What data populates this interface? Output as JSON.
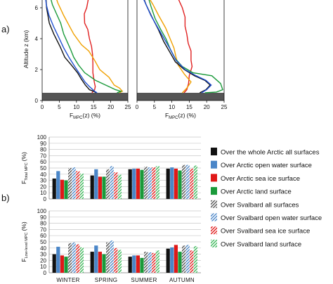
{
  "panel_labels": {
    "a": "a)",
    "b": "b)"
  },
  "chart_data": [
    {
      "type": "line",
      "panel": "a-left",
      "ylabel": "Altitude z (km)",
      "xlabel_main": "F",
      "xlabel_sub": "MPC",
      "xlabel_rest": "(z) (%)",
      "xlim": [
        0,
        25
      ],
      "ylim": [
        0,
        6.5
      ],
      "xticks": [
        "0",
        "5",
        "10",
        "15",
        "20",
        "25"
      ],
      "yticks": [
        "0",
        "2",
        "4",
        "6"
      ],
      "shaded_band_km": [
        0,
        0.5
      ],
      "series": [
        {
          "color": "#e02020",
          "points": [
            [
              13.8,
              7.0
            ],
            [
              13.5,
              6.6
            ],
            [
              13.0,
              6.0
            ],
            [
              12.3,
              5.6
            ],
            [
              12.4,
              5.0
            ],
            [
              13.3,
              4.6
            ],
            [
              13.8,
              4.0
            ],
            [
              14.4,
              3.5
            ],
            [
              14.7,
              3.0
            ],
            [
              14.8,
              2.4
            ],
            [
              14.8,
              1.8
            ],
            [
              15.2,
              1.2
            ],
            [
              15.5,
              0.9
            ],
            [
              15.3,
              0.7
            ],
            [
              14.5,
              0.5
            ]
          ]
        },
        {
          "color": "#f0a000",
          "points": [
            [
              3.5,
              7.0
            ],
            [
              4.6,
              6.3
            ],
            [
              6.3,
              5.5
            ],
            [
              9.2,
              4.3
            ],
            [
              11.5,
              3.6
            ],
            [
              13.6,
              3.2
            ],
            [
              15.3,
              2.6
            ],
            [
              16.8,
              2.0
            ],
            [
              19.5,
              1.5
            ],
            [
              21.0,
              1.0
            ],
            [
              22.6,
              0.8
            ],
            [
              23.4,
              0.6
            ],
            [
              22.5,
              0.5
            ]
          ]
        },
        {
          "color": "#1a9a3a",
          "points": [
            [
              2.0,
              7.0
            ],
            [
              3.0,
              6.2
            ],
            [
              4.0,
              5.7
            ],
            [
              5.4,
              5.0
            ],
            [
              6.3,
              4.3
            ],
            [
              7.3,
              3.8
            ],
            [
              8.3,
              3.3
            ],
            [
              9.2,
              2.8
            ],
            [
              10.6,
              2.3
            ],
            [
              12.4,
              1.8
            ],
            [
              15.6,
              1.3
            ],
            [
              19.5,
              0.9
            ],
            [
              21.4,
              0.7
            ],
            [
              23.0,
              0.6
            ],
            [
              21.8,
              0.5
            ]
          ]
        },
        {
          "color": "#111111",
          "points": [
            [
              1.0,
              7.0
            ],
            [
              1.3,
              6.0
            ],
            [
              2.1,
              5.0
            ],
            [
              3.4,
              4.3
            ],
            [
              5.2,
              3.5
            ],
            [
              6.6,
              2.8
            ],
            [
              8.5,
              2.3
            ],
            [
              10.3,
              1.8
            ],
            [
              11.4,
              1.4
            ],
            [
              12.6,
              1.0
            ],
            [
              13.8,
              0.7
            ],
            [
              15.0,
              0.6
            ],
            [
              15.8,
              0.5
            ]
          ]
        },
        {
          "color": "#2050d0",
          "points": [
            [
              0.8,
              7.0
            ],
            [
              1.2,
              6.2
            ],
            [
              2.0,
              5.5
            ],
            [
              3.3,
              4.8
            ],
            [
              4.6,
              4.2
            ],
            [
              6.3,
              3.4
            ],
            [
              7.8,
              2.8
            ],
            [
              9.5,
              2.2
            ],
            [
              11.0,
              1.7
            ],
            [
              12.5,
              1.2
            ],
            [
              13.8,
              0.9
            ],
            [
              15.3,
              0.6
            ],
            [
              16.0,
              0.5
            ]
          ]
        }
      ]
    },
    {
      "type": "line",
      "panel": "a-right",
      "xlabel_main": "F",
      "xlabel_sub": "MPC",
      "xlabel_rest": "(z) (%)",
      "xlim": [
        0,
        25
      ],
      "ylim": [
        0,
        6.5
      ],
      "xticks": [
        "0",
        "5",
        "10",
        "15",
        "20",
        "25"
      ],
      "shaded_band_km": [
        0,
        0.5
      ],
      "series": [
        {
          "color": "#e02020",
          "points": [
            [
              10.0,
              7.0
            ],
            [
              11.8,
              6.6
            ],
            [
              13.0,
              6.0
            ],
            [
              13.8,
              5.4
            ],
            [
              13.8,
              4.8
            ],
            [
              14.3,
              4.3
            ],
            [
              14.7,
              3.7
            ],
            [
              15.5,
              3.2
            ],
            [
              15.5,
              2.6
            ],
            [
              15.8,
              2.2
            ],
            [
              15.0,
              1.6
            ],
            [
              14.8,
              1.1
            ],
            [
              14.3,
              0.7
            ],
            [
              13.5,
              0.5
            ]
          ]
        },
        {
          "color": "#f0a000",
          "points": [
            [
              2.5,
              7.0
            ],
            [
              4.6,
              6.2
            ],
            [
              6.2,
              5.5
            ],
            [
              8.2,
              4.7
            ],
            [
              9.5,
              4.0
            ],
            [
              10.6,
              3.4
            ],
            [
              11.2,
              2.8
            ],
            [
              11.8,
              2.3
            ],
            [
              13.6,
              1.7
            ],
            [
              15.5,
              1.2
            ],
            [
              14.3,
              0.8
            ],
            [
              13.0,
              0.5
            ]
          ]
        },
        {
          "color": "#1a9a3a",
          "points": [
            [
              2.8,
              7.0
            ],
            [
              4.0,
              6.1
            ],
            [
              5.2,
              5.3
            ],
            [
              6.8,
              4.6
            ],
            [
              8.3,
              4.0
            ],
            [
              9.6,
              3.3
            ],
            [
              11.0,
              2.7
            ],
            [
              13.0,
              2.2
            ],
            [
              16.0,
              1.8
            ],
            [
              21.5,
              1.6
            ],
            [
              24.0,
              1.1
            ],
            [
              24.6,
              0.7
            ],
            [
              22.8,
              0.55
            ],
            [
              19.5,
              0.5
            ]
          ]
        },
        {
          "color": "#111111",
          "points": [
            [
              1.3,
              7.0
            ],
            [
              2.6,
              6.2
            ],
            [
              4.3,
              5.4
            ],
            [
              6.1,
              4.6
            ],
            [
              7.7,
              3.8
            ],
            [
              9.5,
              3.1
            ],
            [
              11.0,
              2.5
            ],
            [
              13.6,
              2.0
            ],
            [
              16.5,
              1.6
            ],
            [
              19.5,
              1.3
            ],
            [
              21.0,
              1.0
            ],
            [
              19.8,
              0.7
            ],
            [
              18.0,
              0.5
            ]
          ]
        },
        {
          "color": "#2050d0",
          "points": [
            [
              1.0,
              7.0
            ],
            [
              2.4,
              6.3
            ],
            [
              4.0,
              5.5
            ],
            [
              6.0,
              4.7
            ],
            [
              7.8,
              4.0
            ],
            [
              9.6,
              3.3
            ],
            [
              11.2,
              2.6
            ],
            [
              13.8,
              2.0
            ],
            [
              17.0,
              1.6
            ],
            [
              19.8,
              1.3
            ],
            [
              21.3,
              1.0
            ],
            [
              20.0,
              0.7
            ],
            [
              18.5,
              0.5
            ]
          ]
        }
      ]
    },
    {
      "type": "bar",
      "panel": "b-top",
      "ylabel_main": "F",
      "ylabel_sub": "Total MPC",
      "ylabel_rest": "(%)",
      "ylim": [
        0,
        100
      ],
      "yticks": [
        "0",
        "10",
        "20",
        "30",
        "40",
        "50",
        "60",
        "70",
        "80",
        "90",
        "100"
      ],
      "categories": [
        "WINTER",
        "SPRING",
        "SUMMER",
        "AUTUMN"
      ],
      "series": [
        {
          "style": "black",
          "values": [
            33,
            38,
            48,
            49
          ]
        },
        {
          "style": "blue",
          "values": [
            45,
            48,
            49,
            51
          ]
        },
        {
          "style": "red",
          "values": [
            31,
            36,
            49,
            49
          ]
        },
        {
          "style": "green",
          "values": [
            30,
            36,
            47,
            46
          ]
        },
        {
          "style": "hatch-black",
          "values": [
            50,
            48,
            52,
            55
          ]
        },
        {
          "style": "hatch-blue",
          "values": [
            51,
            53,
            51,
            55
          ]
        },
        {
          "style": "hatch-red",
          "values": [
            45,
            43,
            51,
            49
          ]
        },
        {
          "style": "hatch-green",
          "values": [
            41,
            39,
            53,
            54
          ]
        }
      ]
    },
    {
      "type": "bar",
      "panel": "b-bottom",
      "ylabel_main": "F",
      "ylabel_sub": "Low-level MPC",
      "ylabel_rest": "(%)",
      "ylim": [
        0,
        100
      ],
      "yticks": [
        "0",
        "10",
        "20",
        "30",
        "40",
        "50",
        "60",
        "70",
        "80",
        "90",
        "100"
      ],
      "categories": [
        "WINTER",
        "SPRING",
        "SUMMER",
        "AUTUMN"
      ],
      "series": [
        {
          "style": "black",
          "values": [
            30,
            34,
            26,
            39
          ]
        },
        {
          "style": "blue",
          "values": [
            42,
            44,
            28,
            41
          ]
        },
        {
          "style": "red",
          "values": [
            28,
            34,
            28,
            45
          ]
        },
        {
          "style": "green",
          "values": [
            26,
            30,
            24,
            34
          ]
        },
        {
          "style": "hatch-black",
          "values": [
            48,
            49,
            34,
            44
          ]
        },
        {
          "style": "hatch-blue",
          "values": [
            49,
            52,
            33,
            45
          ]
        },
        {
          "style": "hatch-red",
          "values": [
            46,
            40,
            32,
            36
          ]
        },
        {
          "style": "hatch-green",
          "values": [
            41,
            37,
            36,
            43
          ]
        }
      ]
    }
  ],
  "legend": [
    {
      "style": "black",
      "label": "Over the whole Arctic  all surfaces"
    },
    {
      "style": "blue",
      "label": "Over Arctic open water surface"
    },
    {
      "style": "red",
      "label": "Over Arctic sea ice surface"
    },
    {
      "style": "green",
      "label": "Over Arctic land surface"
    },
    {
      "style": "hatch-black",
      "label": "Over Svalbard all surfaces"
    },
    {
      "style": "hatch-blue",
      "label": "Over Svalbard open water surface"
    },
    {
      "style": "hatch-red",
      "label": "Over Svalbard sea ice surface"
    },
    {
      "style": "hatch-green",
      "label": "Over Svalbard land surface"
    }
  ],
  "colors": {
    "black": "#111111",
    "blue": "#4a86c8",
    "red": "#e01818",
    "green": "#1a9a3a",
    "hatch-black": "#555555",
    "hatch-blue": "#4a86c8",
    "hatch-red": "#e01818",
    "hatch-green": "#3cb85a"
  }
}
